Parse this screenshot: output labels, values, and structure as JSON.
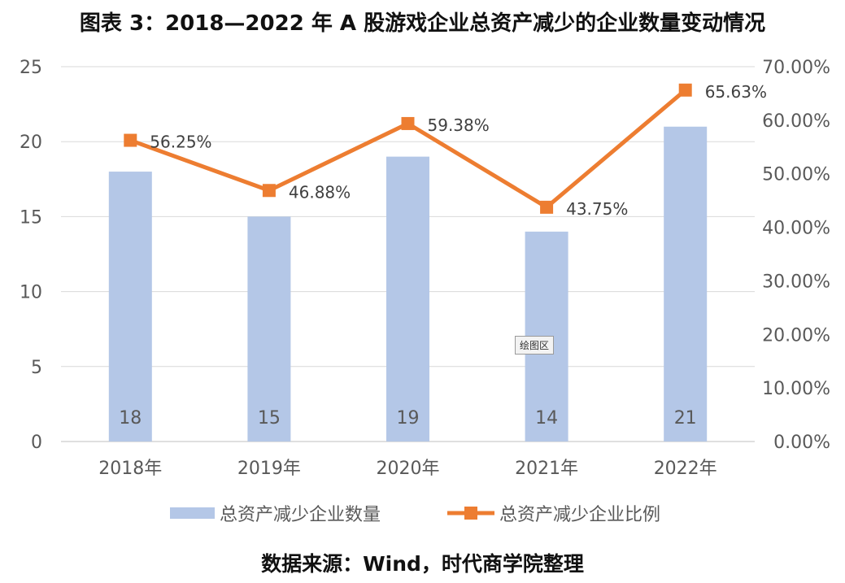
{
  "title": "图表 3：2018—2022 年 A 股游戏企业总资产减少的企业数量变动情况",
  "source": "数据来源：Wind，时代商学院整理",
  "tooltip": "绘图区",
  "colors": {
    "bar": "#b4c7e7",
    "line": "#ed7d31",
    "grid": "#d9d9d9",
    "axis": "#bfbfbf",
    "text": "#595959"
  },
  "chart_data": {
    "type": "bar+line",
    "categories": [
      "2018年",
      "2019年",
      "2020年",
      "2021年",
      "2022年"
    ],
    "series": [
      {
        "name": "总资产减少企业数量",
        "type": "bar",
        "axis": "left",
        "values": [
          18,
          15,
          19,
          14,
          21
        ],
        "labels": [
          "18",
          "15",
          "19",
          "14",
          "21"
        ]
      },
      {
        "name": "总资产减少企业比例",
        "type": "line",
        "axis": "right",
        "values": [
          56.25,
          46.88,
          59.38,
          43.75,
          65.63
        ],
        "labels": [
          "56.25%",
          "46.88%",
          "59.38%",
          "43.75%",
          "65.63%"
        ]
      }
    ],
    "y_left": {
      "min": 0,
      "max": 25,
      "ticks": [
        "0",
        "5",
        "10",
        "15",
        "20",
        "25"
      ]
    },
    "y_right": {
      "min": 0,
      "max": 70,
      "ticks": [
        "0.00%",
        "10.00%",
        "20.00%",
        "30.00%",
        "40.00%",
        "50.00%",
        "60.00%",
        "70.00%"
      ]
    },
    "grid": true,
    "legend_position": "bottom"
  }
}
